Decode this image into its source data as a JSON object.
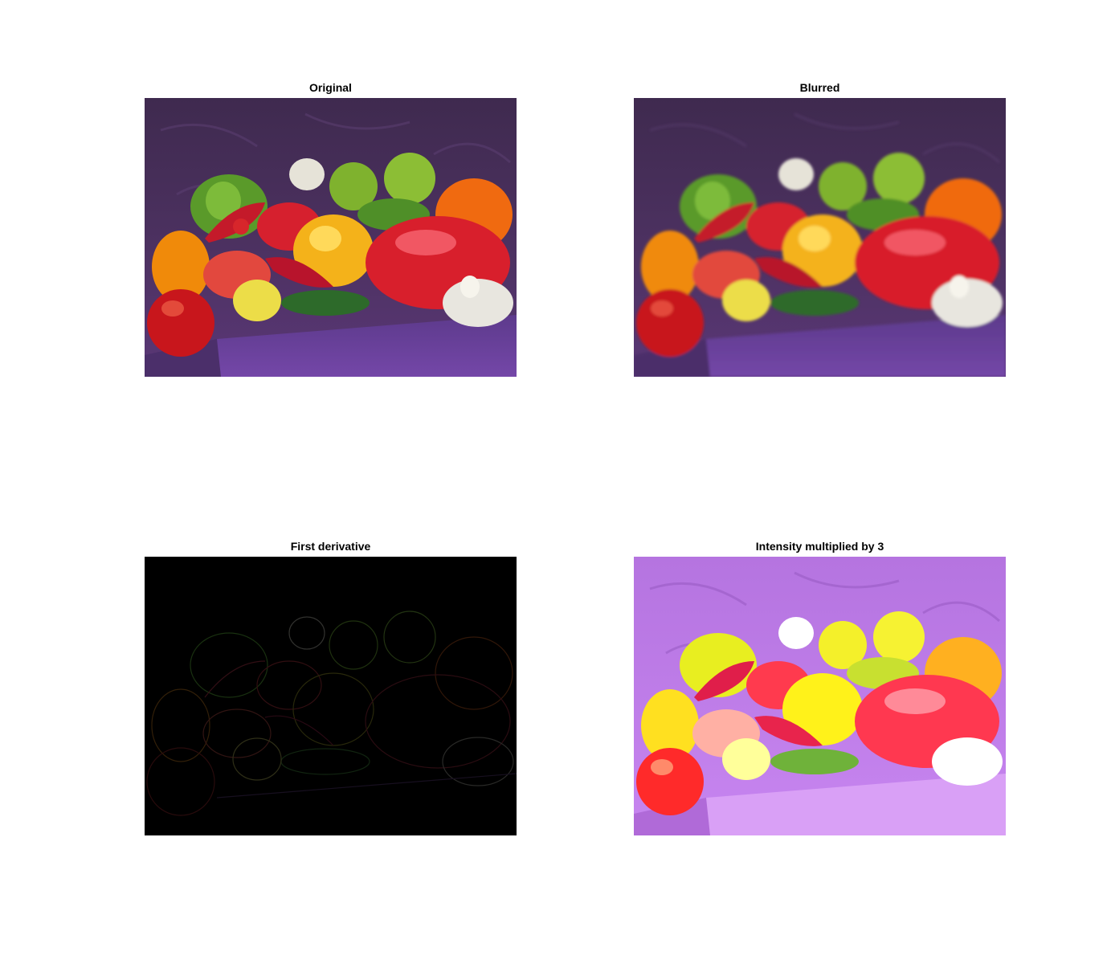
{
  "figure": {
    "panels": [
      {
        "title": "Original"
      },
      {
        "title": "Blurred"
      },
      {
        "title": "First derivative"
      },
      {
        "title": "Intensity multiplied by 3"
      }
    ]
  },
  "colors": {
    "background": "#ffffff",
    "cloth_dark": "#4a2f5c",
    "cloth_table": "#6e44a4",
    "derivative_background": "#000000",
    "bright_cloth": "#c57ae8",
    "bright_table": "#d79af5"
  }
}
